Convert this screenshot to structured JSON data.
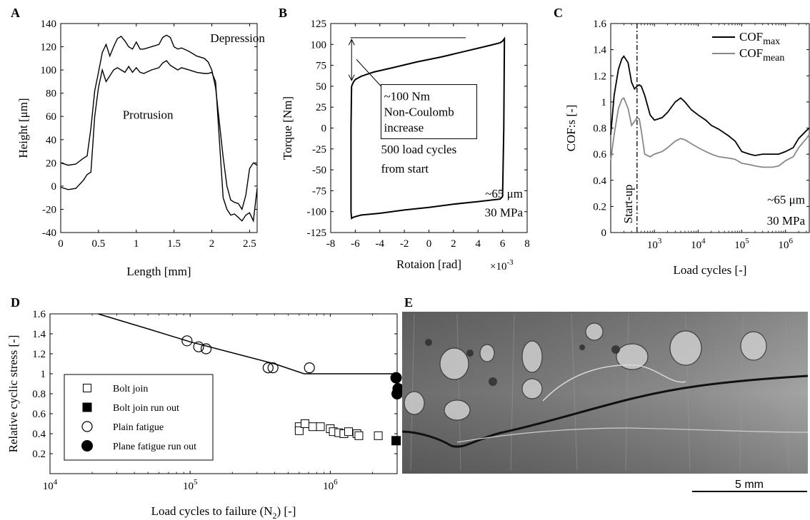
{
  "chart_data": [
    {
      "id": "A",
      "panel_label": "A",
      "type": "line",
      "xlabel": "Length [mm]",
      "ylabel": "Height [μm]",
      "xlim": [
        0,
        2.6
      ],
      "ylim": [
        -40,
        140
      ],
      "xticks": [
        0,
        0.5,
        1,
        1.5,
        2,
        2.5
      ],
      "yticks": [
        -40,
        -20,
        0,
        20,
        40,
        60,
        80,
        100,
        120,
        140
      ],
      "annotations": [
        "Depression",
        "Protrusion"
      ],
      "series": [
        {
          "x": [
            0,
            0.1,
            0.2,
            0.3,
            0.35,
            0.4,
            0.45,
            0.5,
            0.55,
            0.6,
            0.65,
            0.7,
            0.75,
            0.8,
            0.85,
            0.9,
            0.95,
            1.0,
            1.05,
            1.1,
            1.2,
            1.3,
            1.35,
            1.4,
            1.45,
            1.5,
            1.55,
            1.6,
            1.7,
            1.8,
            1.9,
            1.95,
            2.0,
            2.05,
            2.1,
            2.15,
            2.2,
            2.25,
            2.3,
            2.35,
            2.4,
            2.45,
            2.5,
            2.55,
            2.6
          ],
          "y": [
            20,
            18,
            19,
            24,
            26,
            50,
            82,
            98,
            115,
            122,
            112,
            120,
            127,
            129,
            125,
            120,
            118,
            124,
            118,
            118,
            120,
            122,
            128,
            130,
            128,
            120,
            118,
            119,
            116,
            112,
            110,
            107,
            100,
            85,
            55,
            25,
            0,
            -12,
            -14,
            -15,
            -20,
            -8,
            15,
            20,
            18
          ]
        },
        {
          "x": [
            0,
            0.1,
            0.2,
            0.3,
            0.35,
            0.4,
            0.45,
            0.5,
            0.55,
            0.6,
            0.65,
            0.7,
            0.75,
            0.8,
            0.85,
            0.9,
            0.95,
            1.0,
            1.05,
            1.1,
            1.2,
            1.3,
            1.35,
            1.4,
            1.45,
            1.5,
            1.55,
            1.6,
            1.7,
            1.8,
            1.9,
            1.95,
            2.0,
            2.05,
            2.1,
            2.15,
            2.2,
            2.25,
            2.3,
            2.35,
            2.4,
            2.45,
            2.5,
            2.55,
            2.6
          ],
          "y": [
            -1,
            -3,
            -2,
            5,
            10,
            12,
            60,
            85,
            100,
            90,
            95,
            100,
            102,
            100,
            98,
            103,
            98,
            102,
            98,
            97,
            100,
            102,
            106,
            108,
            104,
            102,
            100,
            102,
            100,
            98,
            97,
            97,
            98,
            90,
            40,
            -10,
            -20,
            -25,
            -24,
            -27,
            -30,
            -25,
            -23,
            -30,
            -2
          ]
        }
      ]
    },
    {
      "id": "B",
      "panel_label": "B",
      "type": "line",
      "xlabel": "Rotaion [rad]",
      "x_multiplier": "×10",
      "x_multiplier_exp": "-3",
      "ylabel": "Torque [Nm]",
      "xlim": [
        -8,
        8
      ],
      "ylim": [
        -125,
        125
      ],
      "xticks": [
        -8,
        -6,
        -4,
        -2,
        0,
        2,
        4,
        6,
        8
      ],
      "yticks": [
        -125,
        -100,
        -75,
        -50,
        -25,
        0,
        25,
        50,
        75,
        100,
        125
      ],
      "annotations": [
        "~100 Nm",
        "Non-Coulomb",
        "increase",
        "500 load cycles",
        "from start",
        "~65 μm",
        "30 MPa"
      ],
      "series": [
        {
          "x": [
            -6.3,
            -6.15,
            -6.0,
            -5.5,
            -4.5,
            -3,
            -1,
            1,
            3,
            5,
            5.8,
            6.0,
            6.1,
            6.15,
            6.1,
            6.0,
            5.8,
            5.2,
            4,
            2,
            0,
            -2,
            -4,
            -5.5,
            -6.0,
            -6.2,
            -6.3,
            -6.35,
            -6.35,
            -6.3
          ],
          "y": [
            50,
            55,
            58,
            62,
            67,
            72,
            79,
            85,
            92,
            99,
            102,
            104,
            106,
            107,
            0,
            -82,
            -85,
            -86,
            -88,
            -91,
            -95,
            -98,
            -102,
            -104,
            -106,
            -107,
            -108,
            -100,
            0,
            50
          ]
        }
      ]
    },
    {
      "id": "C",
      "panel_label": "C",
      "type": "line",
      "xlabel": "Load cycles [-]",
      "ylabel": "COF:s [-]",
      "x_scale": "log",
      "xlim": [
        100,
        3500000
      ],
      "ylim": [
        0,
        1.6
      ],
      "xticks": [
        1000,
        10000,
        100000,
        1000000
      ],
      "yticks": [
        0,
        0.2,
        0.4,
        0.6,
        0.8,
        1,
        1.2,
        1.4,
        1.6
      ],
      "annotations": [
        "Start-up",
        "~65 μm",
        "30 MPa"
      ],
      "vline_x": 400,
      "legend_position": "top-right",
      "series": [
        {
          "name": "COF",
          "name_sub": "max",
          "color": "#000000",
          "x": [
            100,
            120,
            150,
            180,
            200,
            250,
            300,
            350,
            400,
            450,
            500,
            600,
            800,
            1000,
            1500,
            2000,
            3000,
            4000,
            5000,
            7000,
            10000,
            15000,
            20000,
            30000,
            50000,
            70000,
            100000,
            150000,
            200000,
            300000,
            500000,
            700000,
            1000000,
            1500000,
            2000000,
            3000000,
            3500000
          ],
          "y": [
            0.75,
            1.05,
            1.25,
            1.33,
            1.35,
            1.3,
            1.15,
            1.1,
            1.12,
            1.13,
            1.12,
            1.05,
            0.9,
            0.86,
            0.88,
            0.92,
            1.0,
            1.03,
            1.0,
            0.94,
            0.9,
            0.86,
            0.82,
            0.79,
            0.74,
            0.7,
            0.62,
            0.6,
            0.59,
            0.6,
            0.6,
            0.6,
            0.62,
            0.65,
            0.72,
            0.78,
            0.8
          ]
        },
        {
          "name": "COF",
          "name_sub": "mean",
          "color": "#888888",
          "x": [
            100,
            120,
            150,
            180,
            200,
            250,
            300,
            350,
            400,
            450,
            500,
            600,
            800,
            1000,
            1500,
            2000,
            3000,
            4000,
            5000,
            7000,
            10000,
            15000,
            20000,
            30000,
            50000,
            70000,
            100000,
            150000,
            200000,
            300000,
            500000,
            700000,
            1000000,
            1500000,
            2000000,
            3000000,
            3500000
          ],
          "y": [
            0.55,
            0.75,
            0.95,
            1.02,
            1.03,
            0.95,
            0.82,
            0.85,
            0.88,
            0.87,
            0.78,
            0.6,
            0.58,
            0.6,
            0.62,
            0.65,
            0.7,
            0.72,
            0.71,
            0.68,
            0.65,
            0.62,
            0.6,
            0.58,
            0.57,
            0.56,
            0.53,
            0.52,
            0.51,
            0.5,
            0.5,
            0.51,
            0.55,
            0.58,
            0.65,
            0.72,
            0.75
          ]
        }
      ]
    },
    {
      "id": "D",
      "panel_label": "D",
      "type": "scatter",
      "xlabel": "Load cycles to failure (N",
      "xlabel_sub": "2",
      "xlabel_suffix": ") [-]",
      "ylabel": "Relative cyclic stress [-]",
      "x_scale": "log",
      "xlim": [
        10000,
        3000000
      ],
      "ylim": [
        0.0,
        1.6
      ],
      "xticks": [
        10000,
        100000,
        1000000
      ],
      "yticks": [
        0.2,
        0.4,
        0.6,
        0.8,
        1,
        1.2,
        1.4,
        1.6
      ],
      "legend_position": "bottom-left",
      "fit_line": {
        "x": [
          22000,
          50000,
          100000,
          200000,
          400000,
          650000,
          3000000
        ],
        "y": [
          1.6,
          1.45,
          1.32,
          1.21,
          1.1,
          1.0,
          1.0
        ]
      },
      "series": [
        {
          "name": "Bolt join",
          "marker": "square-open",
          "x": [
            600000,
            600000,
            660000,
            750000,
            850000,
            1000000,
            1050000,
            1150000,
            1250000,
            1350000,
            1550000,
            1600000,
            2200000
          ],
          "y": [
            0.47,
            0.43,
            0.5,
            0.47,
            0.47,
            0.45,
            0.42,
            0.41,
            0.4,
            0.42,
            0.4,
            0.38,
            0.38
          ]
        },
        {
          "name": "Bolt join run out",
          "marker": "square-filled",
          "x": [
            2950000
          ],
          "y": [
            0.33
          ]
        },
        {
          "name": "Plain fatigue",
          "marker": "circle-open",
          "x": [
            95000,
            115000,
            130000,
            360000,
            390000,
            710000
          ],
          "y": [
            1.33,
            1.27,
            1.25,
            1.06,
            1.06,
            1.06
          ]
        },
        {
          "name": "Plane fatigue run out",
          "marker": "circle-filled",
          "x": [
            2950000,
            3000000,
            3050000
          ],
          "y": [
            0.96,
            0.8,
            0.85
          ]
        }
      ]
    }
  ],
  "panel_e": {
    "panel_label": "E",
    "scale_bar_label": "5 mm"
  }
}
